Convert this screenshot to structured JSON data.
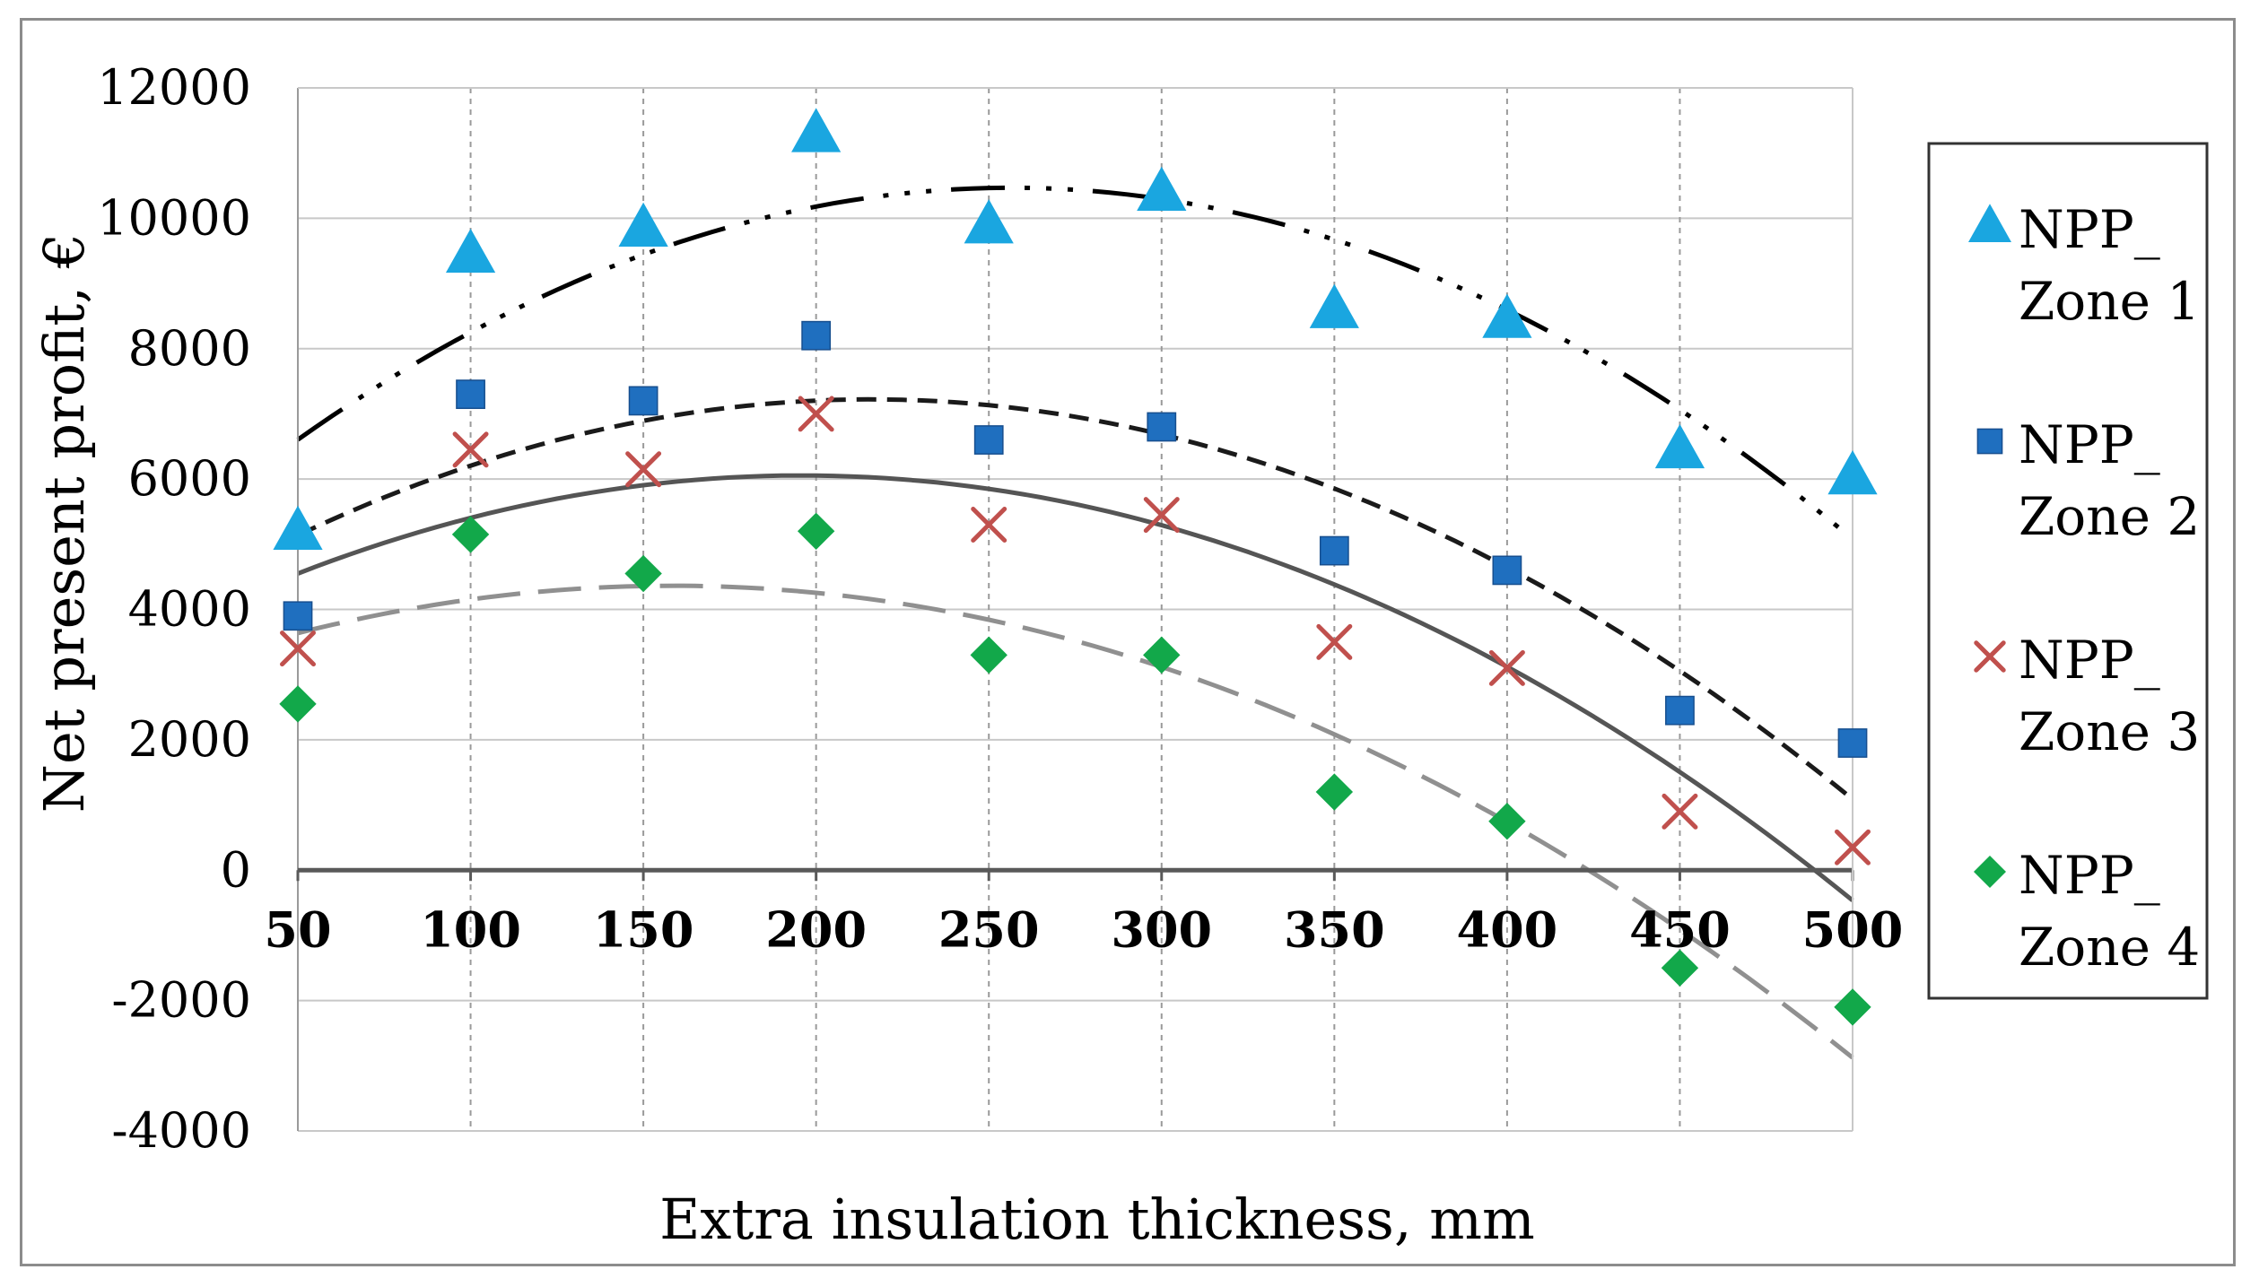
{
  "chart_data": {
    "type": "scatter",
    "title": "",
    "xlabel": "Extra insulation thickness, mm",
    "ylabel": "Net present profit, €",
    "x": [
      50,
      100,
      150,
      200,
      250,
      300,
      350,
      400,
      450,
      500
    ],
    "xlim": [
      50,
      500
    ],
    "ylim": [
      -4000,
      12000
    ],
    "xticks": [
      "50",
      "100",
      "150",
      "200",
      "250",
      "300",
      "350",
      "400",
      "450",
      "500"
    ],
    "yticks": [
      "12000",
      "10000",
      "8000",
      "6000",
      "4000",
      "2000",
      "0",
      "-2000",
      "-4000"
    ],
    "grid": true,
    "legend_position": "right",
    "series": [
      {
        "name": "NPP_ Zone 1",
        "legend_line1": "NPP_",
        "legend_line2": "Zone 1",
        "marker": "triangle",
        "color": "#1aa6e0",
        "values": [
          5200,
          9450,
          9850,
          11300,
          9900,
          10400,
          8600,
          8450,
          6450,
          6050
        ],
        "trend_color": "#000000",
        "trend_dash": "60 22 6 18 6 18 6 22"
      },
      {
        "name": "NPP_ Zone 2",
        "legend_line1": "NPP_",
        "legend_line2": "Zone 2",
        "marker": "square",
        "color": "#1f6fbf",
        "values": [
          3900,
          7300,
          7200,
          8200,
          6600,
          6800,
          4900,
          4600,
          2450,
          1950
        ],
        "trend_color": "#1a1a1a",
        "trend_dash": "22 12"
      },
      {
        "name": "NPP_ Zone 3",
        "legend_line1": "NPP_",
        "legend_line2": "Zone 3",
        "marker": "x",
        "color": "#c0504d",
        "values": [
          3400,
          6450,
          6150,
          7000,
          5300,
          5450,
          3500,
          3100,
          900,
          350
        ],
        "trend_color": "#555555",
        "trend_dash": ""
      },
      {
        "name": "NPP_ Zone 4",
        "legend_line1": "NPP_",
        "legend_line2": "Zone 4",
        "marker": "diamond",
        "color": "#12a84a",
        "values": [
          2550,
          5150,
          4550,
          5200,
          3300,
          3300,
          1200,
          750,
          -1500,
          -2100
        ],
        "trend_color": "#909090",
        "trend_dash": "48 20"
      }
    ]
  }
}
